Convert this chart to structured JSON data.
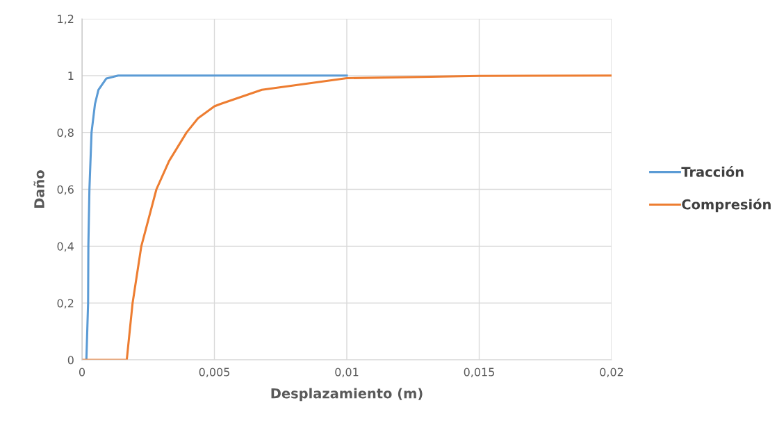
{
  "chart_data": {
    "type": "line",
    "xlabel": "Desplazamiento (m)",
    "ylabel": "Daño",
    "xlim": [
      0,
      0.02
    ],
    "ylim": [
      0,
      1.2
    ],
    "xticks": [
      {
        "value": 0,
        "label": "0"
      },
      {
        "value": 0.005,
        "label": "0,005"
      },
      {
        "value": 0.01,
        "label": "0,01"
      },
      {
        "value": 0.015,
        "label": "0,015"
      },
      {
        "value": 0.02,
        "label": "0,02"
      }
    ],
    "yticks": [
      {
        "value": 0,
        "label": "0"
      },
      {
        "value": 0.2,
        "label": "0,2"
      },
      {
        "value": 0.4,
        "label": "0,4"
      },
      {
        "value": 0.6,
        "label": "0,6"
      },
      {
        "value": 0.8,
        "label": "0,8"
      },
      {
        "value": 1,
        "label": "1"
      },
      {
        "value": 1.2,
        "label": "1,2"
      }
    ],
    "grid": true,
    "legend": "right",
    "marker": "none",
    "line_style": "solid",
    "series": [
      {
        "name": "Tracción",
        "color": "#5b9bd5",
        "x": [
          0.000165,
          0.00023,
          0.00024,
          0.00028,
          0.00036,
          0.00049,
          0.00062,
          0.00092,
          0.00137,
          0.002,
          0.005,
          0.01
        ],
        "values": [
          0,
          0.2,
          0.4,
          0.6,
          0.8,
          0.9,
          0.95,
          0.99,
          1,
          1,
          1,
          1
        ]
      },
      {
        "name": "Compresión",
        "color": "#ed7d31",
        "x": [
          0,
          0.00169,
          0.00191,
          0.00224,
          0.00281,
          0.00329,
          0.00395,
          0.00438,
          0.005,
          0.00522,
          0.00679,
          0.01,
          0.015,
          0.02
        ],
        "values": [
          0,
          0,
          0.2,
          0.4,
          0.6,
          0.7,
          0.8,
          0.85,
          0.892,
          0.9,
          0.95,
          0.991,
          0.999,
          1
        ]
      }
    ]
  }
}
